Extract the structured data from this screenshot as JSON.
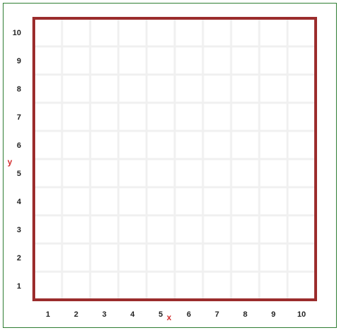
{
  "colors": {
    "frame_border": "#2e7d32",
    "plot_border": "#9b2c2c",
    "grid_line": "#f0f0f0",
    "axis_name": "#d32f2f",
    "tick_text": "#222222"
  },
  "chart_data": {
    "type": "grid",
    "xlabel": "x",
    "ylabel": "y",
    "xlim": [
      0.5,
      10.5
    ],
    "ylim": [
      0.5,
      10.5
    ],
    "x_ticks": [
      "1",
      "2",
      "3",
      "4",
      "5",
      "6",
      "7",
      "8",
      "9",
      "10"
    ],
    "y_ticks": [
      "1",
      "2",
      "3",
      "4",
      "5",
      "6",
      "7",
      "8",
      "9",
      "10"
    ],
    "grid": true
  }
}
